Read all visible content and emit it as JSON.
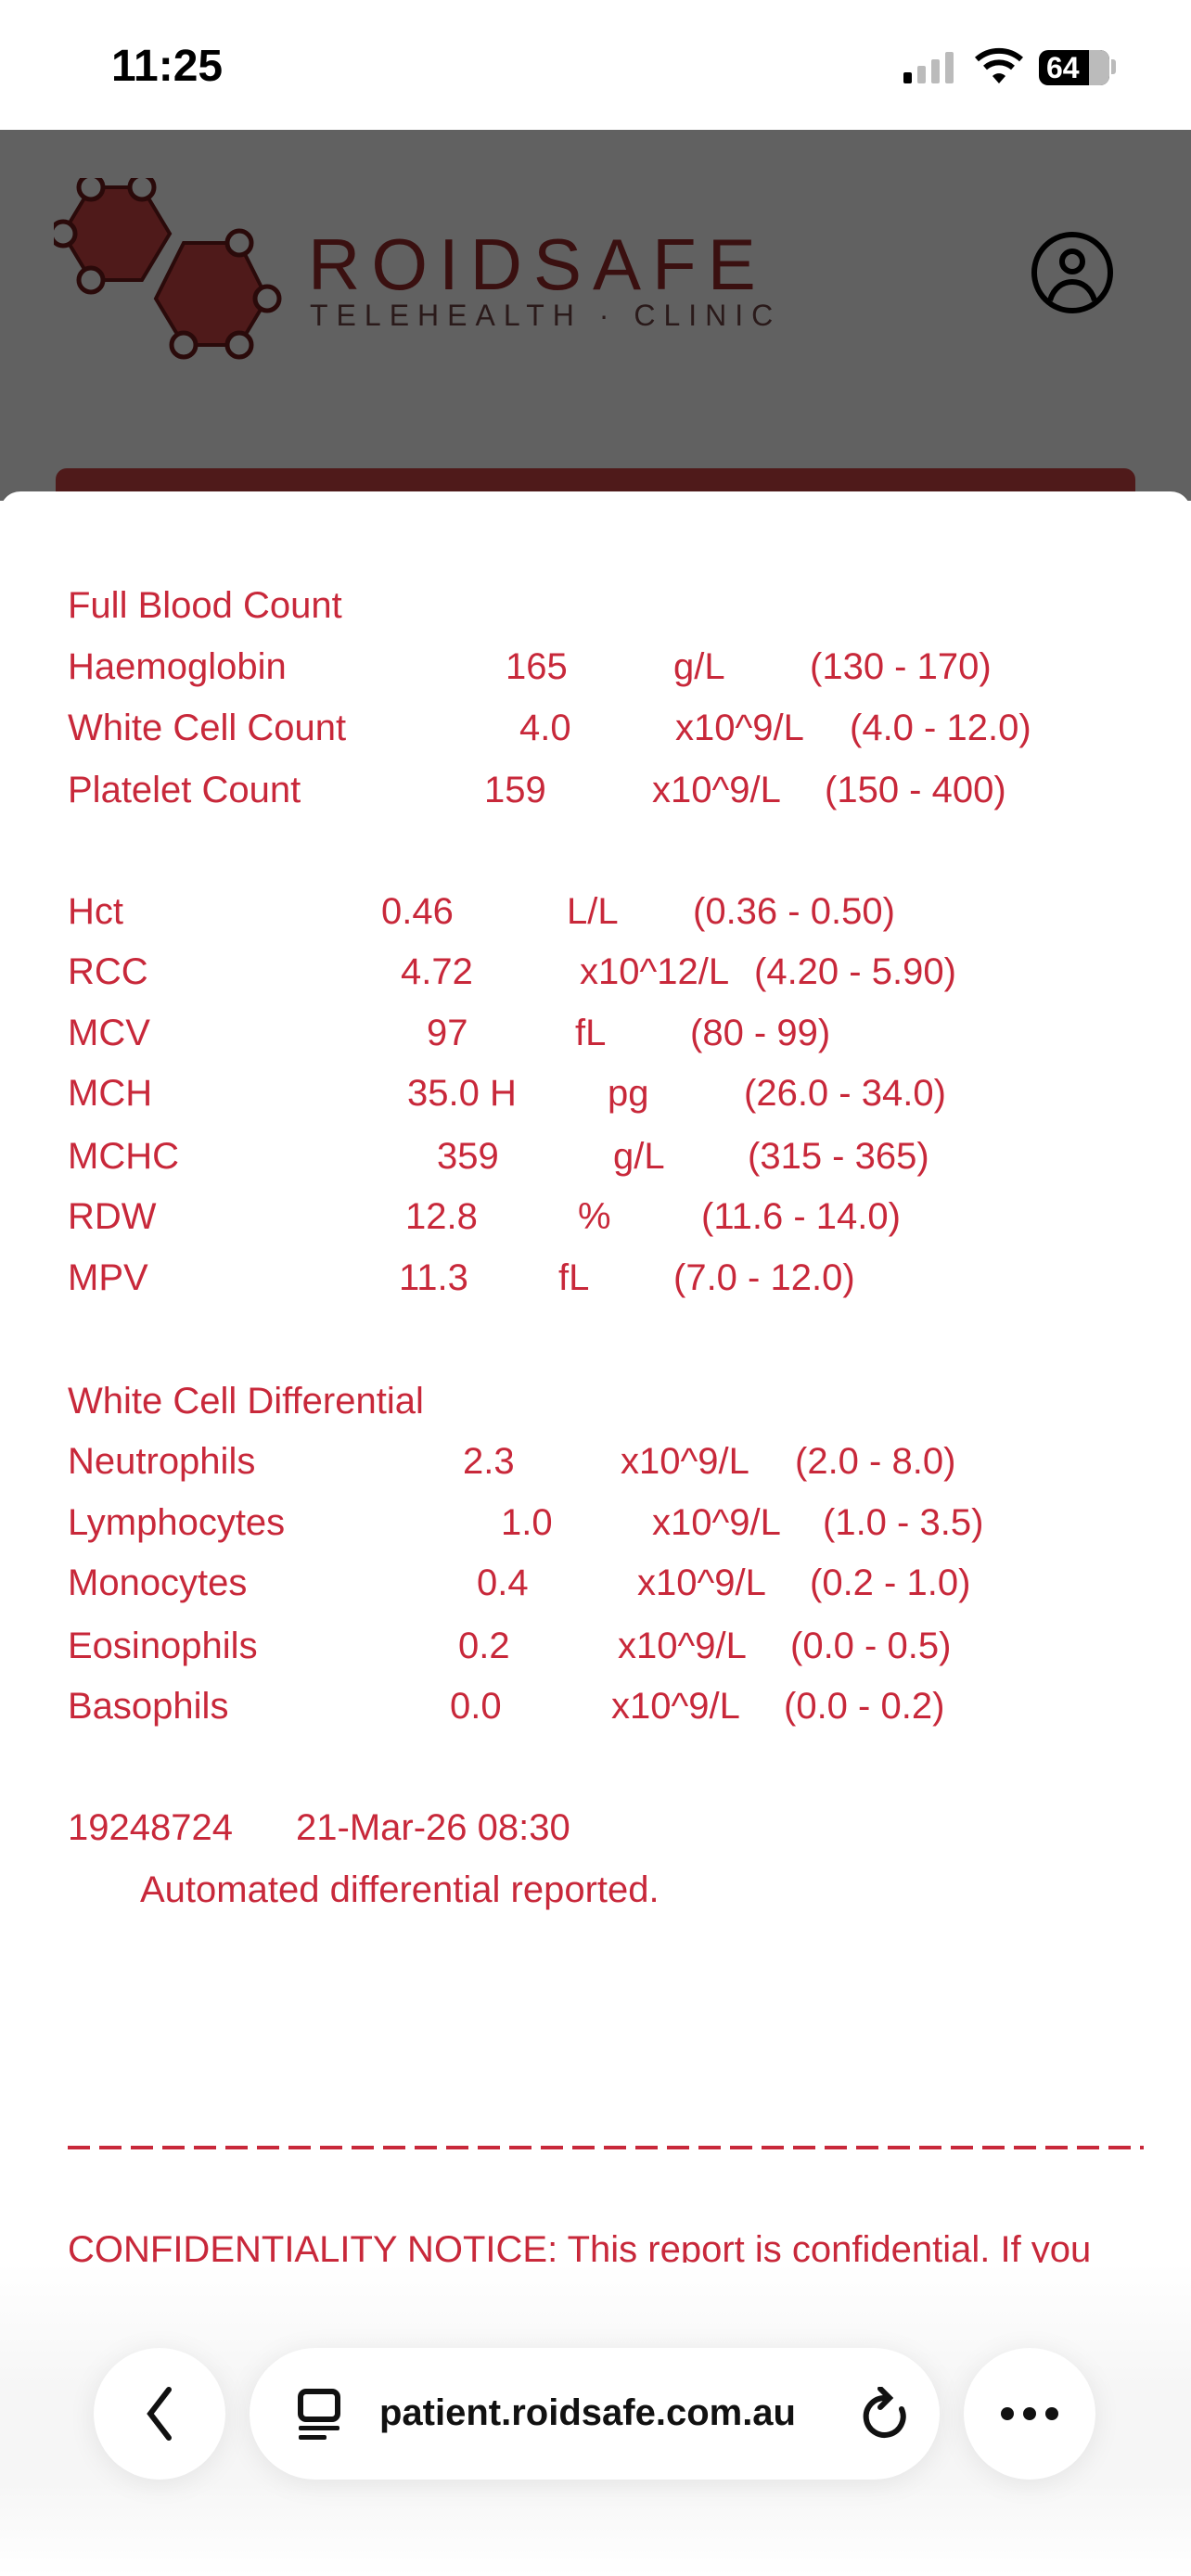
{
  "status_bar": {
    "time": "11:25",
    "battery": "64"
  },
  "header": {
    "brand": "ROIDSAFE",
    "tagline": "TELEHEALTH · CLINIC",
    "brand_color": "#4f1a1a"
  },
  "report": {
    "text_color": "#c8283a",
    "sections": [
      {
        "title": "Full Blood Count",
        "rows": [
          {
            "name": "Haemoglobin",
            "value": "165",
            "unit": "g/L",
            "range": "(130 - 170)"
          },
          {
            "name": "White Cell Count",
            "value": "4.0",
            "unit": "x10^9/L",
            "range": "(4.0 - 12.0)"
          },
          {
            "name": "Platelet Count",
            "value": "159",
            "unit": "x10^9/L",
            "range": "(150 - 400)"
          }
        ]
      },
      {
        "title": "",
        "rows": [
          {
            "name": "Hct",
            "value": "0.46",
            "unit": "L/L",
            "range": "(0.36 - 0.50)"
          },
          {
            "name": "RCC",
            "value": "4.72",
            "unit": "x10^12/L",
            "range": "(4.20 - 5.90)"
          },
          {
            "name": "MCV",
            "value": "97",
            "unit": "fL",
            "range": "(80 - 99)"
          },
          {
            "name": "MCH",
            "value": "35.0 H",
            "unit": "pg",
            "range": "(26.0 - 34.0)"
          },
          {
            "name": "MCHC",
            "value": "359",
            "unit": "g/L",
            "range": "(315 - 365)"
          },
          {
            "name": "RDW",
            "value": "12.8",
            "unit": "%",
            "range": "(11.6 - 14.0)"
          },
          {
            "name": "MPV",
            "value": "11.3",
            "unit": "fL",
            "range": "(7.0 - 12.0)"
          }
        ]
      },
      {
        "title": "White Cell Differential",
        "rows": [
          {
            "name": "Neutrophils",
            "value": "2.3",
            "unit": "x10^9/L",
            "range": "(2.0 - 8.0)"
          },
          {
            "name": "Lymphocytes",
            "value": "1.0",
            "unit": "x10^9/L",
            "range": "(1.0 - 3.5)"
          },
          {
            "name": "Monocytes",
            "value": "0.4",
            "unit": "x10^9/L",
            "range": "(0.2 - 1.0)"
          },
          {
            "name": "Eosinophils",
            "value": "0.2",
            "unit": "x10^9/L",
            "range": "(0.0 - 0.5)"
          },
          {
            "name": "Basophils",
            "value": "0.0",
            "unit": "x10^9/L",
            "range": "(0.0 - 0.2)"
          }
        ]
      }
    ],
    "lab_number": "19248724",
    "collected": "21-Mar-26 08:30",
    "comment": "Automated differential reported.",
    "notice": "CONFIDENTIALITY NOTICE: This report is confidential. If you"
  },
  "browser": {
    "url": "patient.roidsafe.com.au",
    "icons": [
      "back-chevron-icon",
      "page-menu-icon",
      "reload-icon",
      "more-icon"
    ]
  }
}
